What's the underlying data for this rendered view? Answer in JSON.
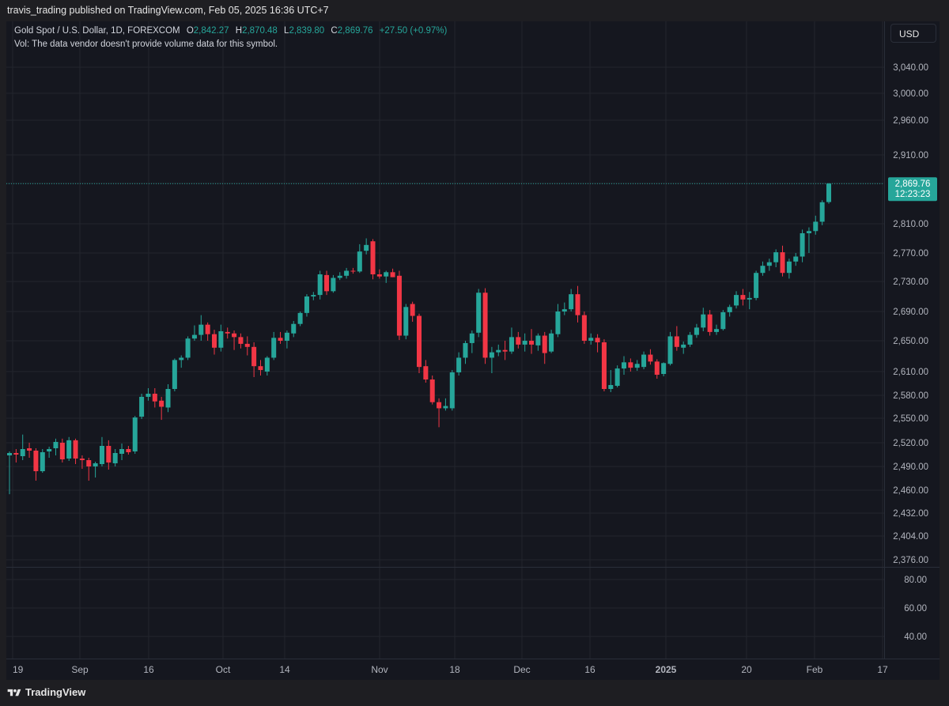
{
  "publisher_line": "travis_trading published on TradingView.com, Feb 05, 2025 16:36 UTC+7",
  "legend": {
    "symbol": "Gold Spot / U.S. Dollar, 1D, FOREXCOM",
    "o_label": "O",
    "o_value": "2,842.27",
    "h_label": "H",
    "h_value": "2,870.48",
    "l_label": "L",
    "l_value": "2,839.80",
    "c_label": "C",
    "c_value": "2,869.76",
    "change": "+27.50 (+0.97%)",
    "volume_note": "Vol: The data vendor doesn't provide volume data for this symbol."
  },
  "currency_button": "USD",
  "footer_brand": "TradingView",
  "colors": {
    "up": "#26a69a",
    "down": "#f23645",
    "background": "#15171f",
    "grid": "#22252e",
    "text": "#b2b5be"
  },
  "last_price": {
    "value": "2,869.76",
    "countdown": "12:23:23"
  },
  "chart_data": {
    "type": "candlestick",
    "timeframe": "1D",
    "price_axis": {
      "ticks": [
        3040,
        3000,
        2960,
        2910,
        2870,
        2810,
        2770,
        2730,
        2690,
        2650,
        2610,
        2580,
        2550,
        2520,
        2490,
        2460,
        2432,
        2404,
        2376
      ],
      "tick_labels": [
        "3,040.00",
        "3,000.00",
        "2,960.00",
        "2,910.00",
        "2,870.00",
        "2,810.00",
        "2,770.00",
        "2,730.00",
        "2,690.00",
        "2,650.00",
        "2,610.00",
        "2,580.00",
        "2,550.00",
        "2,520.00",
        "2,490.00",
        "2,460.00",
        "2,432.00",
        "2,404.00",
        "2,376.00"
      ],
      "scale": "nonlinear"
    },
    "lower_pane_axis": {
      "ticks": [
        80,
        60,
        40
      ],
      "tick_labels": [
        "80.00",
        "60.00",
        "40.00"
      ]
    },
    "time_axis": {
      "labels": [
        "19",
        "Sep",
        "16",
        "Oct",
        "14",
        "Nov",
        "18",
        "Dec",
        "16",
        "2025",
        "20",
        "Feb",
        "17"
      ]
    },
    "candles": [
      {
        "o": 2504,
        "h": 2509,
        "l": 2455,
        "c": 2507
      },
      {
        "o": 2507,
        "h": 2512,
        "l": 2495,
        "c": 2505
      },
      {
        "o": 2503,
        "h": 2530,
        "l": 2498,
        "c": 2512
      },
      {
        "o": 2513,
        "h": 2520,
        "l": 2501,
        "c": 2510
      },
      {
        "o": 2510,
        "h": 2513,
        "l": 2472,
        "c": 2484
      },
      {
        "o": 2484,
        "h": 2512,
        "l": 2482,
        "c": 2508
      },
      {
        "o": 2509,
        "h": 2515,
        "l": 2501,
        "c": 2512
      },
      {
        "o": 2513,
        "h": 2525,
        "l": 2504,
        "c": 2521
      },
      {
        "o": 2520,
        "h": 2525,
        "l": 2495,
        "c": 2499
      },
      {
        "o": 2500,
        "h": 2527,
        "l": 2497,
        "c": 2523
      },
      {
        "o": 2523,
        "h": 2525,
        "l": 2493,
        "c": 2500
      },
      {
        "o": 2500,
        "h": 2504,
        "l": 2487,
        "c": 2498
      },
      {
        "o": 2498,
        "h": 2501,
        "l": 2472,
        "c": 2490
      },
      {
        "o": 2490,
        "h": 2496,
        "l": 2476,
        "c": 2494
      },
      {
        "o": 2493,
        "h": 2527,
        "l": 2490,
        "c": 2516
      },
      {
        "o": 2516,
        "h": 2523,
        "l": 2486,
        "c": 2495
      },
      {
        "o": 2494,
        "h": 2512,
        "l": 2490,
        "c": 2507
      },
      {
        "o": 2506,
        "h": 2519,
        "l": 2498,
        "c": 2512
      },
      {
        "o": 2512,
        "h": 2516,
        "l": 2505,
        "c": 2508
      },
      {
        "o": 2509,
        "h": 2553,
        "l": 2506,
        "c": 2551
      },
      {
        "o": 2552,
        "h": 2582,
        "l": 2549,
        "c": 2578
      },
      {
        "o": 2578,
        "h": 2589,
        "l": 2573,
        "c": 2582
      },
      {
        "o": 2582,
        "h": 2589,
        "l": 2564,
        "c": 2572
      },
      {
        "o": 2573,
        "h": 2578,
        "l": 2548,
        "c": 2565
      },
      {
        "o": 2564,
        "h": 2594,
        "l": 2558,
        "c": 2588
      },
      {
        "o": 2588,
        "h": 2627,
        "l": 2585,
        "c": 2625
      },
      {
        "o": 2625,
        "h": 2631,
        "l": 2615,
        "c": 2628
      },
      {
        "o": 2628,
        "h": 2656,
        "l": 2625,
        "c": 2653
      },
      {
        "o": 2653,
        "h": 2671,
        "l": 2650,
        "c": 2658
      },
      {
        "o": 2658,
        "h": 2685,
        "l": 2650,
        "c": 2672
      },
      {
        "o": 2672,
        "h": 2675,
        "l": 2650,
        "c": 2659
      },
      {
        "o": 2659,
        "h": 2665,
        "l": 2632,
        "c": 2641
      },
      {
        "o": 2641,
        "h": 2672,
        "l": 2636,
        "c": 2663
      },
      {
        "o": 2662,
        "h": 2668,
        "l": 2653,
        "c": 2660
      },
      {
        "o": 2660,
        "h": 2664,
        "l": 2638,
        "c": 2655
      },
      {
        "o": 2655,
        "h": 2660,
        "l": 2640,
        "c": 2646
      },
      {
        "o": 2646,
        "h": 2656,
        "l": 2631,
        "c": 2642
      },
      {
        "o": 2642,
        "h": 2648,
        "l": 2603,
        "c": 2617
      },
      {
        "o": 2617,
        "h": 2625,
        "l": 2605,
        "c": 2612
      },
      {
        "o": 2610,
        "h": 2630,
        "l": 2605,
        "c": 2628
      },
      {
        "o": 2628,
        "h": 2662,
        "l": 2625,
        "c": 2654
      },
      {
        "o": 2654,
        "h": 2662,
        "l": 2646,
        "c": 2650
      },
      {
        "o": 2650,
        "h": 2664,
        "l": 2640,
        "c": 2661
      },
      {
        "o": 2660,
        "h": 2677,
        "l": 2655,
        "c": 2673
      },
      {
        "o": 2673,
        "h": 2690,
        "l": 2670,
        "c": 2688
      },
      {
        "o": 2688,
        "h": 2713,
        "l": 2683,
        "c": 2710
      },
      {
        "o": 2710,
        "h": 2716,
        "l": 2705,
        "c": 2712
      },
      {
        "o": 2712,
        "h": 2745,
        "l": 2706,
        "c": 2740
      },
      {
        "o": 2739,
        "h": 2745,
        "l": 2712,
        "c": 2717
      },
      {
        "o": 2717,
        "h": 2739,
        "l": 2715,
        "c": 2735
      },
      {
        "o": 2735,
        "h": 2743,
        "l": 2732,
        "c": 2738
      },
      {
        "o": 2738,
        "h": 2749,
        "l": 2734,
        "c": 2745
      },
      {
        "o": 2745,
        "h": 2749,
        "l": 2741,
        "c": 2744
      },
      {
        "o": 2744,
        "h": 2782,
        "l": 2742,
        "c": 2772
      },
      {
        "o": 2773,
        "h": 2790,
        "l": 2768,
        "c": 2781
      },
      {
        "o": 2786,
        "h": 2789,
        "l": 2733,
        "c": 2740
      },
      {
        "o": 2740,
        "h": 2747,
        "l": 2734,
        "c": 2737
      },
      {
        "o": 2737,
        "h": 2745,
        "l": 2728,
        "c": 2743
      },
      {
        "o": 2743,
        "h": 2748,
        "l": 2736,
        "c": 2736
      },
      {
        "o": 2738,
        "h": 2745,
        "l": 2651,
        "c": 2657
      },
      {
        "o": 2657,
        "h": 2700,
        "l": 2652,
        "c": 2696
      },
      {
        "o": 2700,
        "h": 2703,
        "l": 2676,
        "c": 2684
      },
      {
        "o": 2684,
        "h": 2687,
        "l": 2608,
        "c": 2616
      },
      {
        "o": 2617,
        "h": 2625,
        "l": 2596,
        "c": 2600
      },
      {
        "o": 2600,
        "h": 2605,
        "l": 2568,
        "c": 2571
      },
      {
        "o": 2571,
        "h": 2576,
        "l": 2539,
        "c": 2563
      },
      {
        "o": 2563,
        "h": 2576,
        "l": 2560,
        "c": 2566
      },
      {
        "o": 2563,
        "h": 2612,
        "l": 2560,
        "c": 2609
      },
      {
        "o": 2609,
        "h": 2635,
        "l": 2605,
        "c": 2628
      },
      {
        "o": 2628,
        "h": 2650,
        "l": 2620,
        "c": 2647
      },
      {
        "o": 2647,
        "h": 2664,
        "l": 2634,
        "c": 2660
      },
      {
        "o": 2661,
        "h": 2720,
        "l": 2655,
        "c": 2715
      },
      {
        "o": 2715,
        "h": 2721,
        "l": 2620,
        "c": 2628
      },
      {
        "o": 2628,
        "h": 2642,
        "l": 2608,
        "c": 2635
      },
      {
        "o": 2635,
        "h": 2645,
        "l": 2630,
        "c": 2638
      },
      {
        "o": 2638,
        "h": 2650,
        "l": 2625,
        "c": 2636
      },
      {
        "o": 2636,
        "h": 2668,
        "l": 2633,
        "c": 2655
      },
      {
        "o": 2655,
        "h": 2662,
        "l": 2640,
        "c": 2645
      },
      {
        "o": 2645,
        "h": 2660,
        "l": 2636,
        "c": 2650
      },
      {
        "o": 2650,
        "h": 2666,
        "l": 2633,
        "c": 2645
      },
      {
        "o": 2644,
        "h": 2660,
        "l": 2637,
        "c": 2657
      },
      {
        "o": 2657,
        "h": 2662,
        "l": 2620,
        "c": 2634
      },
      {
        "o": 2636,
        "h": 2665,
        "l": 2634,
        "c": 2660
      },
      {
        "o": 2659,
        "h": 2700,
        "l": 2655,
        "c": 2690
      },
      {
        "o": 2690,
        "h": 2702,
        "l": 2685,
        "c": 2693
      },
      {
        "o": 2693,
        "h": 2720,
        "l": 2690,
        "c": 2713
      },
      {
        "o": 2713,
        "h": 2724,
        "l": 2675,
        "c": 2685
      },
      {
        "o": 2685,
        "h": 2690,
        "l": 2646,
        "c": 2650
      },
      {
        "o": 2650,
        "h": 2660,
        "l": 2645,
        "c": 2654
      },
      {
        "o": 2654,
        "h": 2659,
        "l": 2635,
        "c": 2648
      },
      {
        "o": 2648,
        "h": 2652,
        "l": 2585,
        "c": 2588
      },
      {
        "o": 2588,
        "h": 2612,
        "l": 2584,
        "c": 2593
      },
      {
        "o": 2592,
        "h": 2618,
        "l": 2590,
        "c": 2614
      },
      {
        "o": 2614,
        "h": 2630,
        "l": 2606,
        "c": 2622
      },
      {
        "o": 2622,
        "h": 2627,
        "l": 2610,
        "c": 2615
      },
      {
        "o": 2615,
        "h": 2625,
        "l": 2611,
        "c": 2620
      },
      {
        "o": 2616,
        "h": 2636,
        "l": 2613,
        "c": 2632
      },
      {
        "o": 2632,
        "h": 2639,
        "l": 2619,
        "c": 2623
      },
      {
        "o": 2623,
        "h": 2626,
        "l": 2601,
        "c": 2606
      },
      {
        "o": 2607,
        "h": 2622,
        "l": 2604,
        "c": 2621
      },
      {
        "o": 2620,
        "h": 2662,
        "l": 2618,
        "c": 2656
      },
      {
        "o": 2656,
        "h": 2670,
        "l": 2637,
        "c": 2642
      },
      {
        "o": 2641,
        "h": 2649,
        "l": 2633,
        "c": 2645
      },
      {
        "o": 2645,
        "h": 2662,
        "l": 2642,
        "c": 2658
      },
      {
        "o": 2658,
        "h": 2673,
        "l": 2654,
        "c": 2668
      },
      {
        "o": 2668,
        "h": 2695,
        "l": 2663,
        "c": 2686
      },
      {
        "o": 2686,
        "h": 2692,
        "l": 2657,
        "c": 2662
      },
      {
        "o": 2662,
        "h": 2672,
        "l": 2658,
        "c": 2666
      },
      {
        "o": 2666,
        "h": 2692,
        "l": 2664,
        "c": 2689
      },
      {
        "o": 2689,
        "h": 2699,
        "l": 2683,
        "c": 2696
      },
      {
        "o": 2698,
        "h": 2717,
        "l": 2694,
        "c": 2712
      },
      {
        "o": 2712,
        "h": 2720,
        "l": 2698,
        "c": 2706
      },
      {
        "o": 2706,
        "h": 2716,
        "l": 2693,
        "c": 2708
      },
      {
        "o": 2708,
        "h": 2745,
        "l": 2705,
        "c": 2742
      },
      {
        "o": 2742,
        "h": 2758,
        "l": 2738,
        "c": 2752
      },
      {
        "o": 2752,
        "h": 2762,
        "l": 2745,
        "c": 2757
      },
      {
        "o": 2757,
        "h": 2775,
        "l": 2750,
        "c": 2771
      },
      {
        "o": 2771,
        "h": 2780,
        "l": 2737,
        "c": 2742
      },
      {
        "o": 2742,
        "h": 2762,
        "l": 2734,
        "c": 2758
      },
      {
        "o": 2758,
        "h": 2770,
        "l": 2752,
        "c": 2765
      },
      {
        "o": 2765,
        "h": 2802,
        "l": 2757,
        "c": 2797
      },
      {
        "o": 2797,
        "h": 2805,
        "l": 2770,
        "c": 2800
      },
      {
        "o": 2800,
        "h": 2822,
        "l": 2795,
        "c": 2813
      },
      {
        "o": 2813,
        "h": 2845,
        "l": 2808,
        "c": 2842
      },
      {
        "o": 2842.27,
        "h": 2870.48,
        "l": 2839.8,
        "c": 2869.76
      }
    ]
  }
}
